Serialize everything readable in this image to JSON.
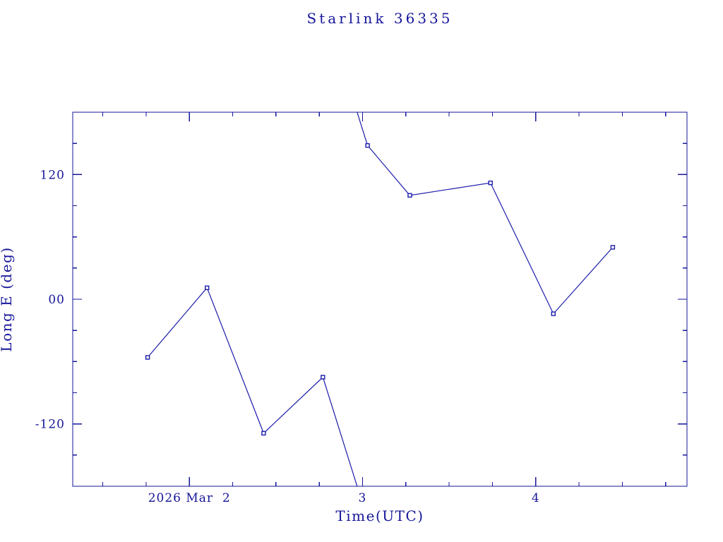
{
  "page": {
    "background": "#ffffff"
  },
  "colors": {
    "ink": "#16169a",
    "series_line": "#1c1caa",
    "marker_fill": "#ffffff"
  },
  "chart_data": {
    "type": "line",
    "title": "Starlink 36335",
    "xlabel": "Time(UTC)",
    "ylabel": "Long E (deg)",
    "x_unit": "decimal day of March 2026 (UTC)",
    "xlim": [
      1.3265,
      4.8735
    ],
    "ylim": [
      -180,
      180
    ],
    "grid": false,
    "legend": "none",
    "x_major_ticks": [
      {
        "value": 2,
        "label": "2026 Mar  2"
      },
      {
        "value": 3,
        "label": "3"
      },
      {
        "value": 4,
        "label": "4"
      }
    ],
    "x_minor_step": 0.25,
    "y_major_ticks": [
      {
        "value": 120,
        "label": "120"
      },
      {
        "value": 0,
        "label": "00"
      },
      {
        "value": -120,
        "label": "-120"
      }
    ],
    "y_minor_step": 30,
    "wrap_degrees": 360,
    "series": [
      {
        "name": "Long E",
        "marker": "open-square",
        "points": [
          {
            "day": 1.759,
            "lon_e_deg": -56
          },
          {
            "day": 2.102,
            "lon_e_deg": 11
          },
          {
            "day": 2.429,
            "lon_e_deg": -129
          },
          {
            "day": 2.771,
            "lon_e_deg": -75
          },
          {
            "day": 3.029,
            "lon_e_deg": 148
          },
          {
            "day": 3.273,
            "lon_e_deg": 100
          },
          {
            "day": 3.739,
            "lon_e_deg": 112
          },
          {
            "day": 4.102,
            "lon_e_deg": -14
          },
          {
            "day": 4.445,
            "lon_e_deg": 50
          }
        ]
      }
    ]
  }
}
